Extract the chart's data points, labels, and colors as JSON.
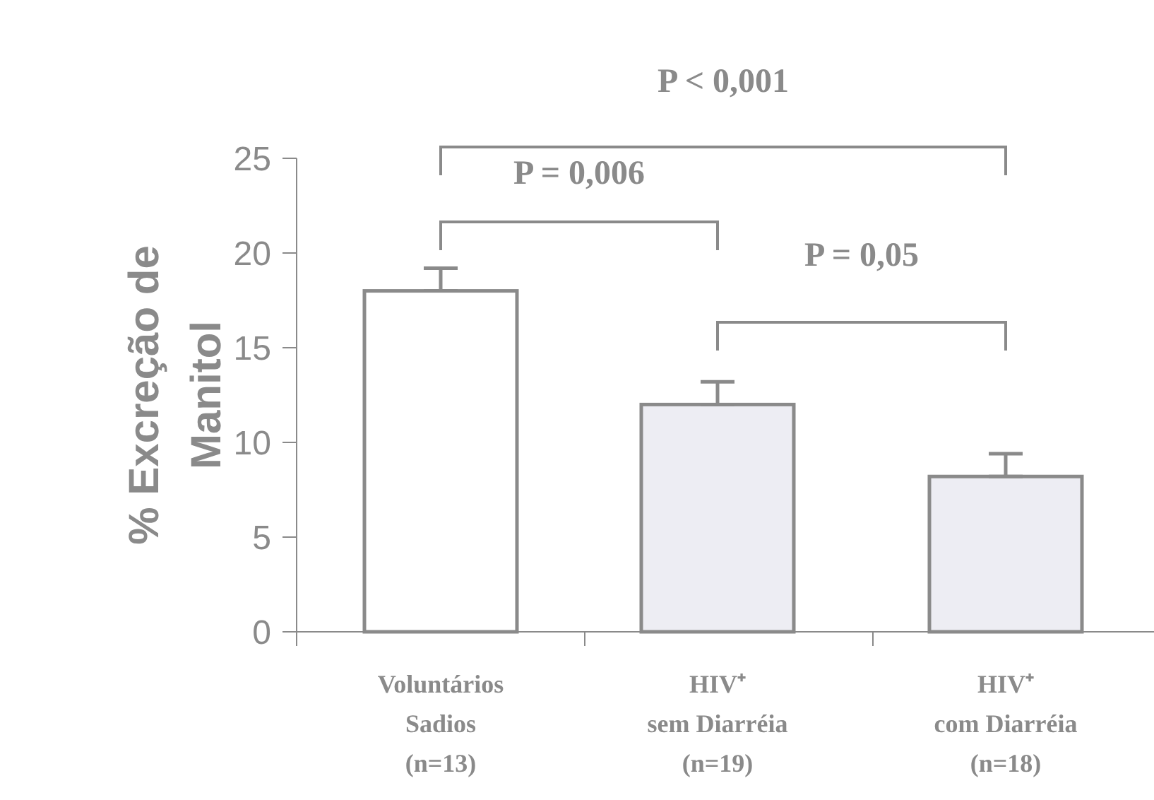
{
  "chart_data": {
    "type": "bar",
    "ylabel": "% Excreção de\nManitol",
    "categories": [
      "Voluntários\nSadios\n(n=13)",
      "HIV⁺\nsem Diarréia\n(n=19)",
      "HIV⁺\ncom Diarréia\n(n=18)"
    ],
    "values": [
      18,
      12,
      8.2
    ],
    "colors": [
      "#ffffff",
      "#ededf3",
      "#ededf3"
    ],
    "errors": [
      [
        18,
        19.2
      ],
      [
        12,
        13.2
      ],
      [
        8.2,
        9.4
      ]
    ],
    "ylim": [
      0,
      25
    ],
    "yticks": [
      0,
      5,
      10,
      15,
      20,
      25
    ],
    "grid": false,
    "annotations": [
      "P < 0,001",
      "P = 0,006",
      "P = 0,05"
    ]
  }
}
